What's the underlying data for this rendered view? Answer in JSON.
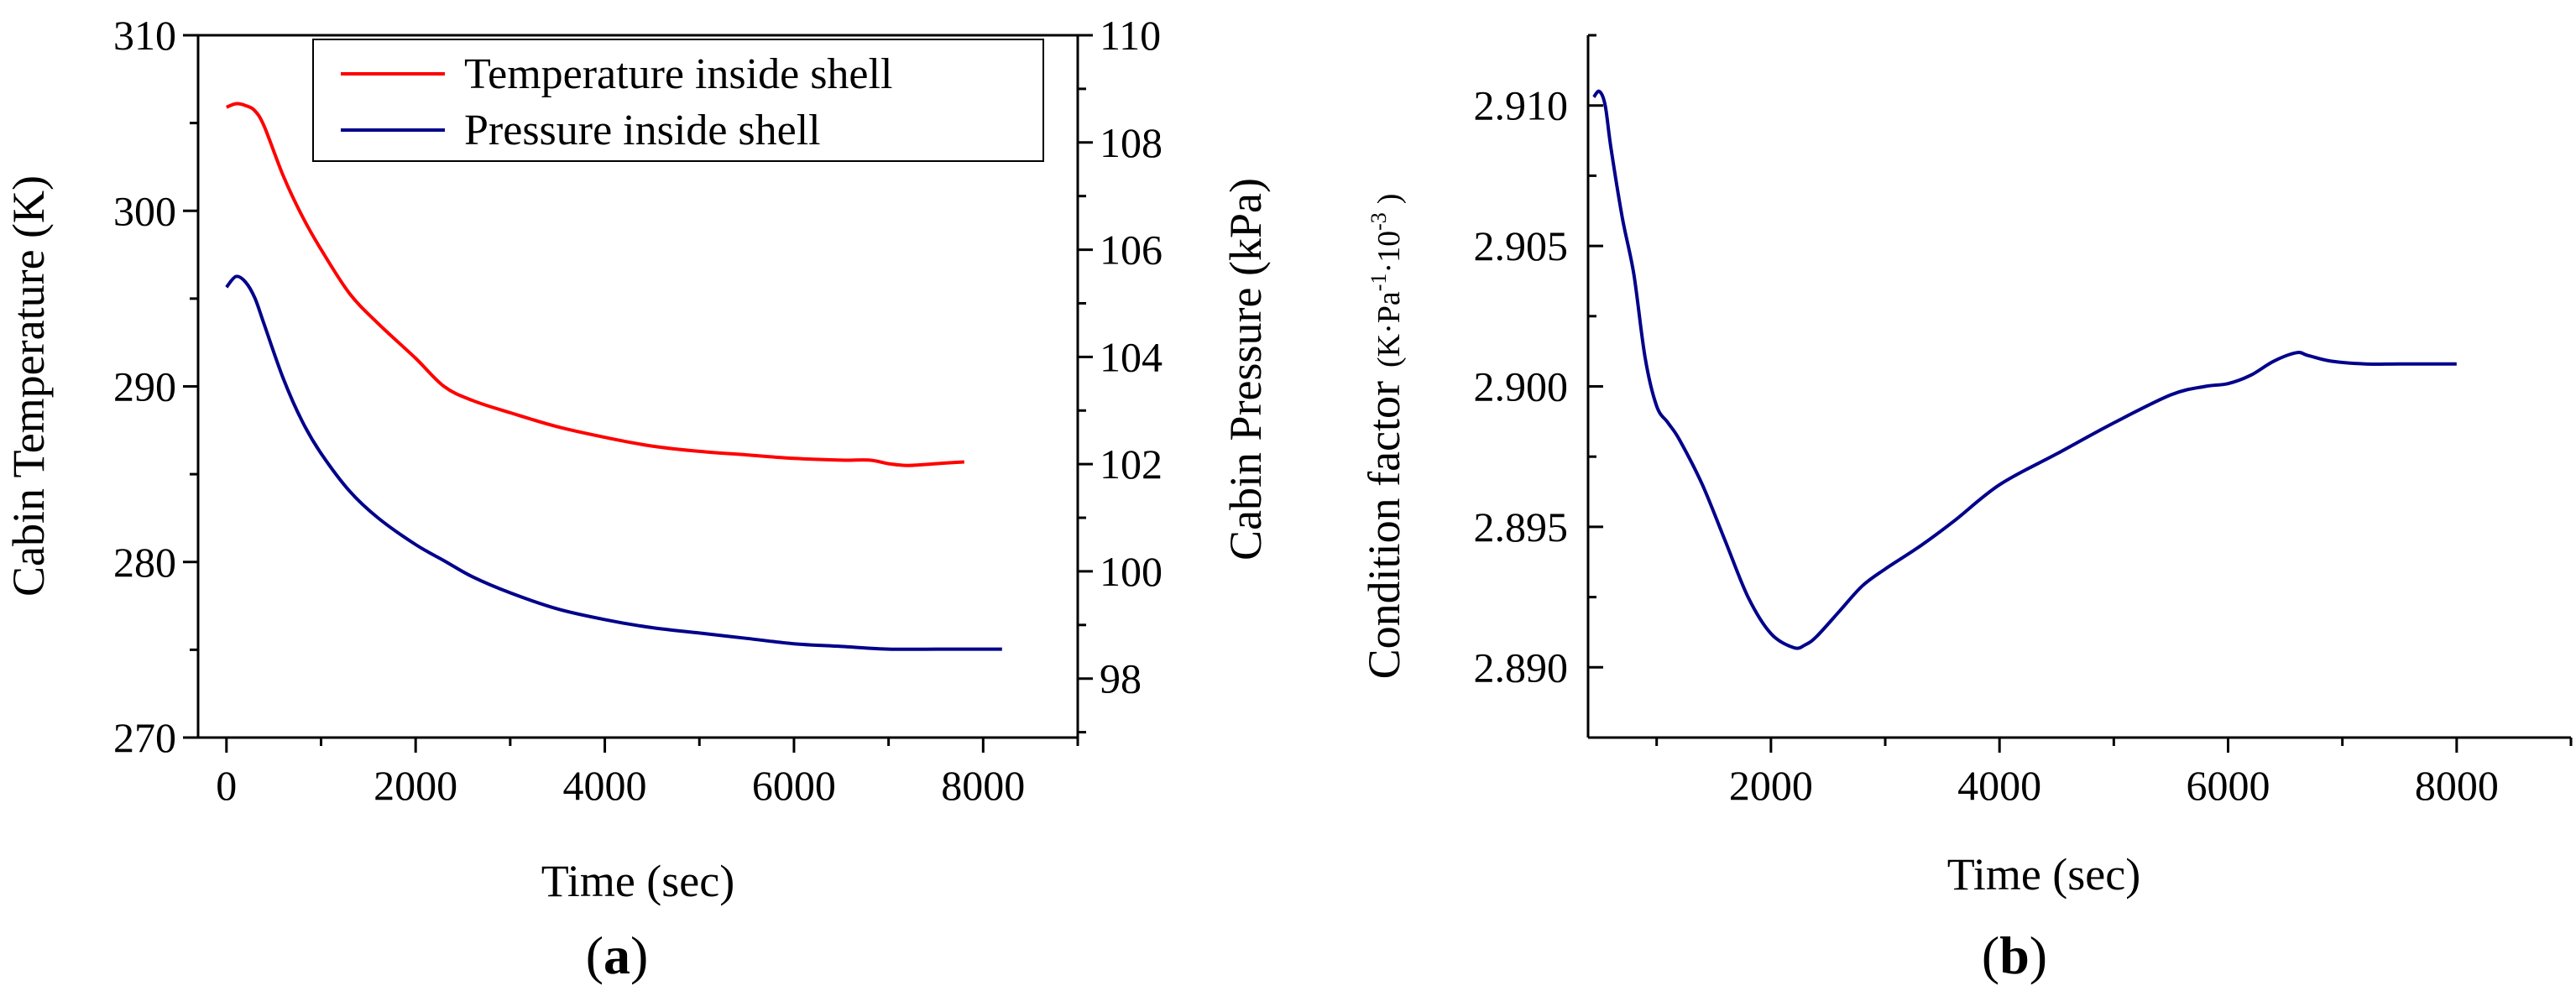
{
  "chart_data": [
    {
      "id": "a",
      "type": "line",
      "panel_label": {
        "open": "(",
        "letter": "a",
        "close": ")"
      },
      "xlabel": "Time (sec)",
      "ylabel_left": "Cabin Temperature (K)",
      "ylabel_right": "Cabin Pressure (kPa)",
      "xlim": [
        -300,
        9000
      ],
      "ylim_left": [
        270,
        310
      ],
      "ylim_right": [
        96.9,
        110
      ],
      "x_ticks": [
        0,
        2000,
        4000,
        6000,
        8000
      ],
      "x_tick_labels": [
        "0",
        "2000",
        "4000",
        "6000",
        "8000"
      ],
      "y_left_ticks": [
        270,
        280,
        290,
        300,
        310
      ],
      "y_left_tick_labels": [
        "270",
        "280",
        "290",
        "300",
        "310"
      ],
      "y_right_ticks": [
        98,
        100,
        102,
        104,
        106,
        108,
        110
      ],
      "y_right_tick_labels": [
        "98",
        "100",
        "102",
        "104",
        "106",
        "108",
        "110"
      ],
      "legend": {
        "position": "top-right",
        "entries": [
          {
            "label": "Temperature inside shell",
            "color": "#ff0000"
          },
          {
            "label": "Pressure inside shell",
            "color": "#00008b"
          }
        ]
      },
      "series": [
        {
          "name": "Temperature inside shell",
          "axis": "left",
          "color": "#ff0000",
          "x": [
            0,
            100,
            200,
            300,
            400,
            600,
            800,
            1000,
            1300,
            1600,
            2000,
            2300,
            2600,
            3000,
            3500,
            4000,
            4500,
            5000,
            5500,
            6000,
            6500,
            6800,
            7000,
            7200,
            7500,
            7800
          ],
          "y": [
            305.9,
            306.1,
            306.0,
            305.7,
            304.8,
            302.0,
            299.7,
            297.8,
            295.3,
            293.6,
            291.6,
            290.0,
            289.2,
            288.5,
            287.7,
            287.1,
            286.6,
            286.3,
            286.1,
            285.9,
            285.8,
            285.8,
            285.6,
            285.5,
            285.6,
            285.7
          ]
        },
        {
          "name": "Pressure inside shell",
          "axis": "right",
          "color": "#00008b",
          "x": [
            0,
            100,
            200,
            300,
            400,
            600,
            800,
            1000,
            1300,
            1600,
            2000,
            2300,
            2600,
            3000,
            3500,
            4000,
            4500,
            5000,
            5500,
            6000,
            6500,
            7000,
            7500,
            8000,
            8200
          ],
          "y": [
            105.3,
            105.5,
            105.4,
            105.1,
            104.6,
            103.6,
            102.8,
            102.2,
            101.5,
            101.0,
            100.5,
            100.2,
            99.9,
            99.6,
            99.3,
            99.1,
            98.95,
            98.85,
            98.75,
            98.65,
            98.6,
            98.55,
            98.55,
            98.55,
            98.55
          ]
        }
      ]
    },
    {
      "id": "b",
      "type": "line",
      "panel_label": {
        "open": "(",
        "letter": "b",
        "close": ")"
      },
      "xlabel": "Time (sec)",
      "ylabel": "Condition factor",
      "ylabel_units": {
        "open": "(K·Pa",
        "exp1": "-1",
        "mid": "·10",
        "exp2": "-3",
        "close": ")"
      },
      "xlim": [
        400,
        9000
      ],
      "ylim": [
        2.8875,
        2.9125
      ],
      "x_ticks": [
        2000,
        4000,
        6000,
        8000
      ],
      "x_tick_labels": [
        "2000",
        "4000",
        "6000",
        "8000"
      ],
      "y_ticks": [
        2.89,
        2.895,
        2.9,
        2.905,
        2.91
      ],
      "y_tick_labels": [
        "2.890",
        "2.895",
        "2.900",
        "2.905",
        "2.910"
      ],
      "series": [
        {
          "name": "Condition factor",
          "color": "#00008b",
          "x": [
            450,
            500,
            550,
            600,
            700,
            800,
            900,
            1000,
            1100,
            1200,
            1400,
            1600,
            1800,
            2000,
            2200,
            2300,
            2400,
            2600,
            2800,
            3000,
            3300,
            3600,
            4000,
            4500,
            5000,
            5500,
            5800,
            6000,
            6200,
            6400,
            6600,
            6700,
            6900,
            7200,
            7500,
            8000
          ],
          "y": [
            2.9103,
            2.9105,
            2.91,
            2.9085,
            2.906,
            2.904,
            2.901,
            2.8993,
            2.8987,
            2.8981,
            2.8965,
            2.8945,
            2.8925,
            2.8912,
            2.8907,
            2.8908,
            2.8911,
            2.892,
            2.8929,
            2.8935,
            2.8943,
            2.8952,
            2.8965,
            2.8976,
            2.8987,
            2.8997,
            2.9,
            2.9001,
            2.9004,
            2.9009,
            2.9012,
            2.9011,
            2.9009,
            2.9008,
            2.9008,
            2.9008
          ]
        }
      ]
    }
  ]
}
